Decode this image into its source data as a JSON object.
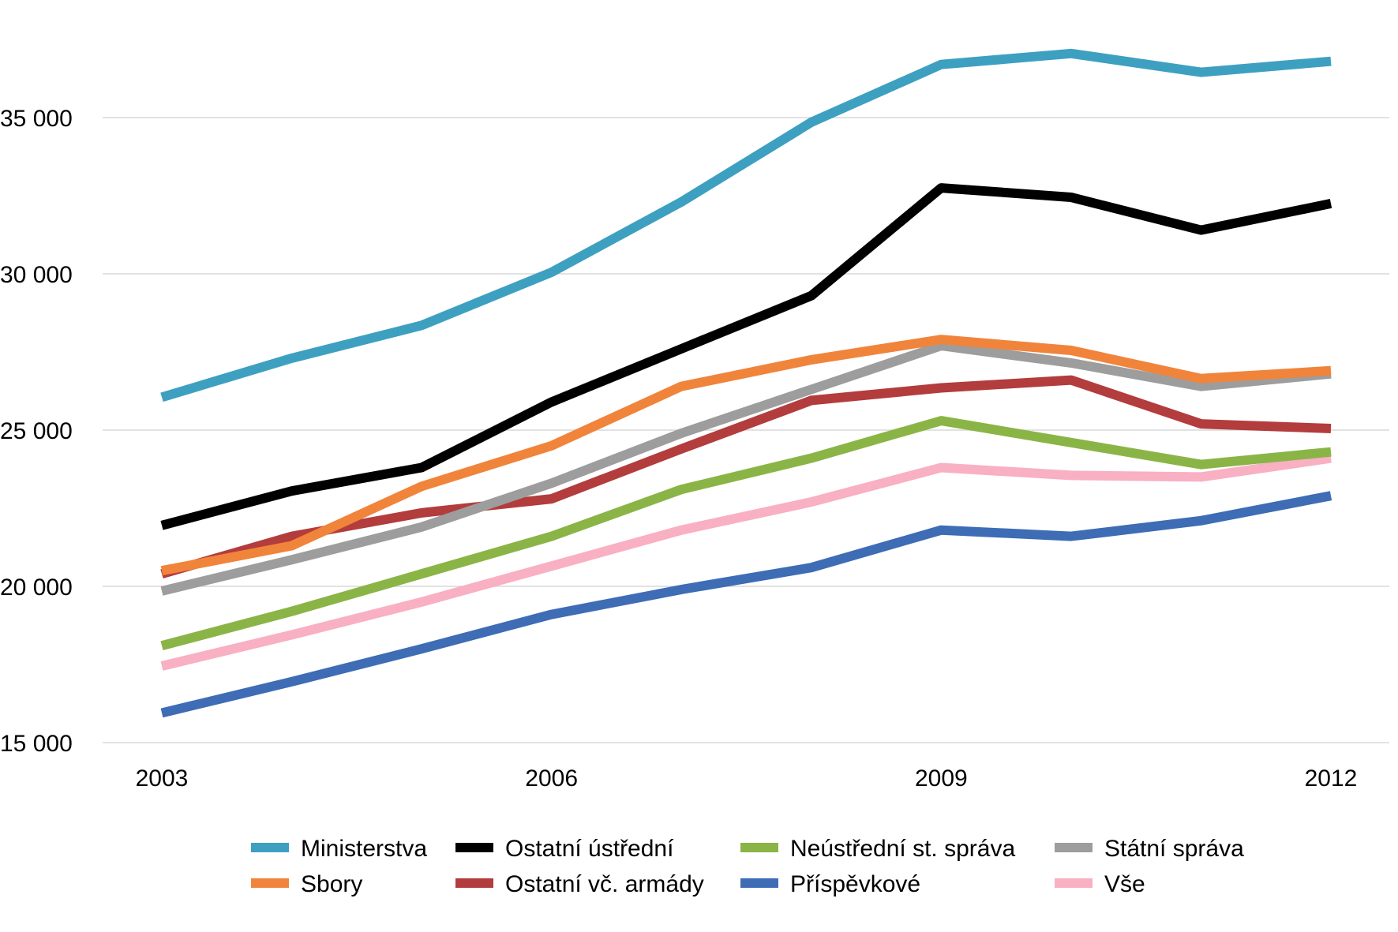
{
  "chart_data": {
    "type": "line",
    "title": "",
    "xlabel": "",
    "ylabel": "",
    "x": [
      2003,
      2004,
      2005,
      2006,
      2007,
      2008,
      2009,
      2010,
      2011,
      2012
    ],
    "x_tick_labels": [
      "2003",
      "2006",
      "2009",
      "2012"
    ],
    "x_tick_values": [
      2003,
      2006,
      2009,
      2012
    ],
    "y_ticks": [
      15000,
      20000,
      25000,
      30000,
      35000
    ],
    "y_tick_labels": [
      "15 000",
      "20 000",
      "25 000",
      "30 000",
      "35 000"
    ],
    "ylim": [
      15000,
      38000
    ],
    "grid": true,
    "legend_position": "bottom",
    "series": [
      {
        "name": "Ministerstva",
        "color": "#3ea0c0",
        "values": [
          26050,
          27300,
          28350,
          30050,
          32300,
          34850,
          36700,
          37050,
          36450,
          36800
        ]
      },
      {
        "name": "Ostatní ústřední",
        "color": "#000000",
        "values": [
          21950,
          23050,
          23800,
          25900,
          27600,
          29300,
          32750,
          32450,
          31400,
          32250
        ]
      },
      {
        "name": "Neústřední st. správa",
        "color": "#8bb446",
        "values": [
          18100,
          19200,
          20400,
          21600,
          23100,
          24100,
          25300,
          24600,
          23900,
          24300
        ]
      },
      {
        "name": "Státní správa",
        "color": "#9d9d9d",
        "values": [
          19850,
          20850,
          21900,
          23300,
          24900,
          26300,
          27700,
          27150,
          26400,
          26800
        ]
      },
      {
        "name": "Sbory",
        "color": "#f0843b",
        "values": [
          20500,
          21300,
          23200,
          24500,
          26400,
          27250,
          27900,
          27550,
          26650,
          26900
        ]
      },
      {
        "name": "Ostatní vč. armády",
        "color": "#b33c3d",
        "values": [
          20400,
          21600,
          22350,
          22800,
          24400,
          25950,
          26350,
          26600,
          25200,
          25050
        ]
      },
      {
        "name": "Příspěvkové",
        "color": "#3e6cb5",
        "values": [
          15950,
          16950,
          18000,
          19100,
          19900,
          20600,
          21800,
          21600,
          22100,
          22900
        ]
      },
      {
        "name": "Vše",
        "color": "#f8b0c2",
        "values": [
          17450,
          18450,
          19500,
          20650,
          21800,
          22700,
          23800,
          23550,
          23500,
          24100
        ]
      }
    ],
    "legend_order": [
      [
        "Ministerstva",
        "Ostatní ústřední",
        "Neústřední st. správa",
        "Státní správa"
      ],
      [
        "Sbory",
        "Ostatní vč. armády",
        "Příspěvkové",
        "Vše"
      ]
    ]
  }
}
